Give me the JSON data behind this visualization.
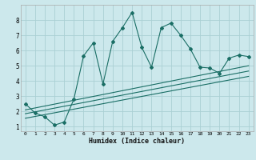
{
  "xlabel": "Humidex (Indice chaleur)",
  "bg_color": "#cce8ec",
  "line_color": "#1a6e65",
  "grid_color": "#aacfd4",
  "xlim": [
    -0.5,
    23.5
  ],
  "ylim": [
    0.7,
    9.0
  ],
  "xticks": [
    0,
    1,
    2,
    3,
    4,
    5,
    6,
    7,
    8,
    9,
    10,
    11,
    12,
    13,
    14,
    15,
    16,
    17,
    18,
    19,
    20,
    21,
    22,
    23
  ],
  "yticks": [
    1,
    2,
    3,
    4,
    5,
    6,
    7,
    8
  ],
  "jagged_x": [
    0,
    1,
    2,
    3,
    4,
    5,
    6,
    7,
    8,
    9,
    10,
    11,
    12,
    13,
    14,
    15,
    16,
    17,
    18,
    19,
    20,
    21,
    22,
    23
  ],
  "jagged_y": [
    2.5,
    1.9,
    1.65,
    1.1,
    1.3,
    2.8,
    5.65,
    6.5,
    3.8,
    6.6,
    7.5,
    8.5,
    6.2,
    4.9,
    7.5,
    7.8,
    7.0,
    6.1,
    4.9,
    4.85,
    4.5,
    5.5,
    5.7,
    5.6
  ],
  "line1_x": [
    0,
    23
  ],
  "line1_y": [
    2.1,
    5.0
  ],
  "line2_x": [
    0,
    23
  ],
  "line2_y": [
    1.85,
    4.65
  ],
  "line3_x": [
    0,
    23
  ],
  "line3_y": [
    1.55,
    4.3
  ]
}
